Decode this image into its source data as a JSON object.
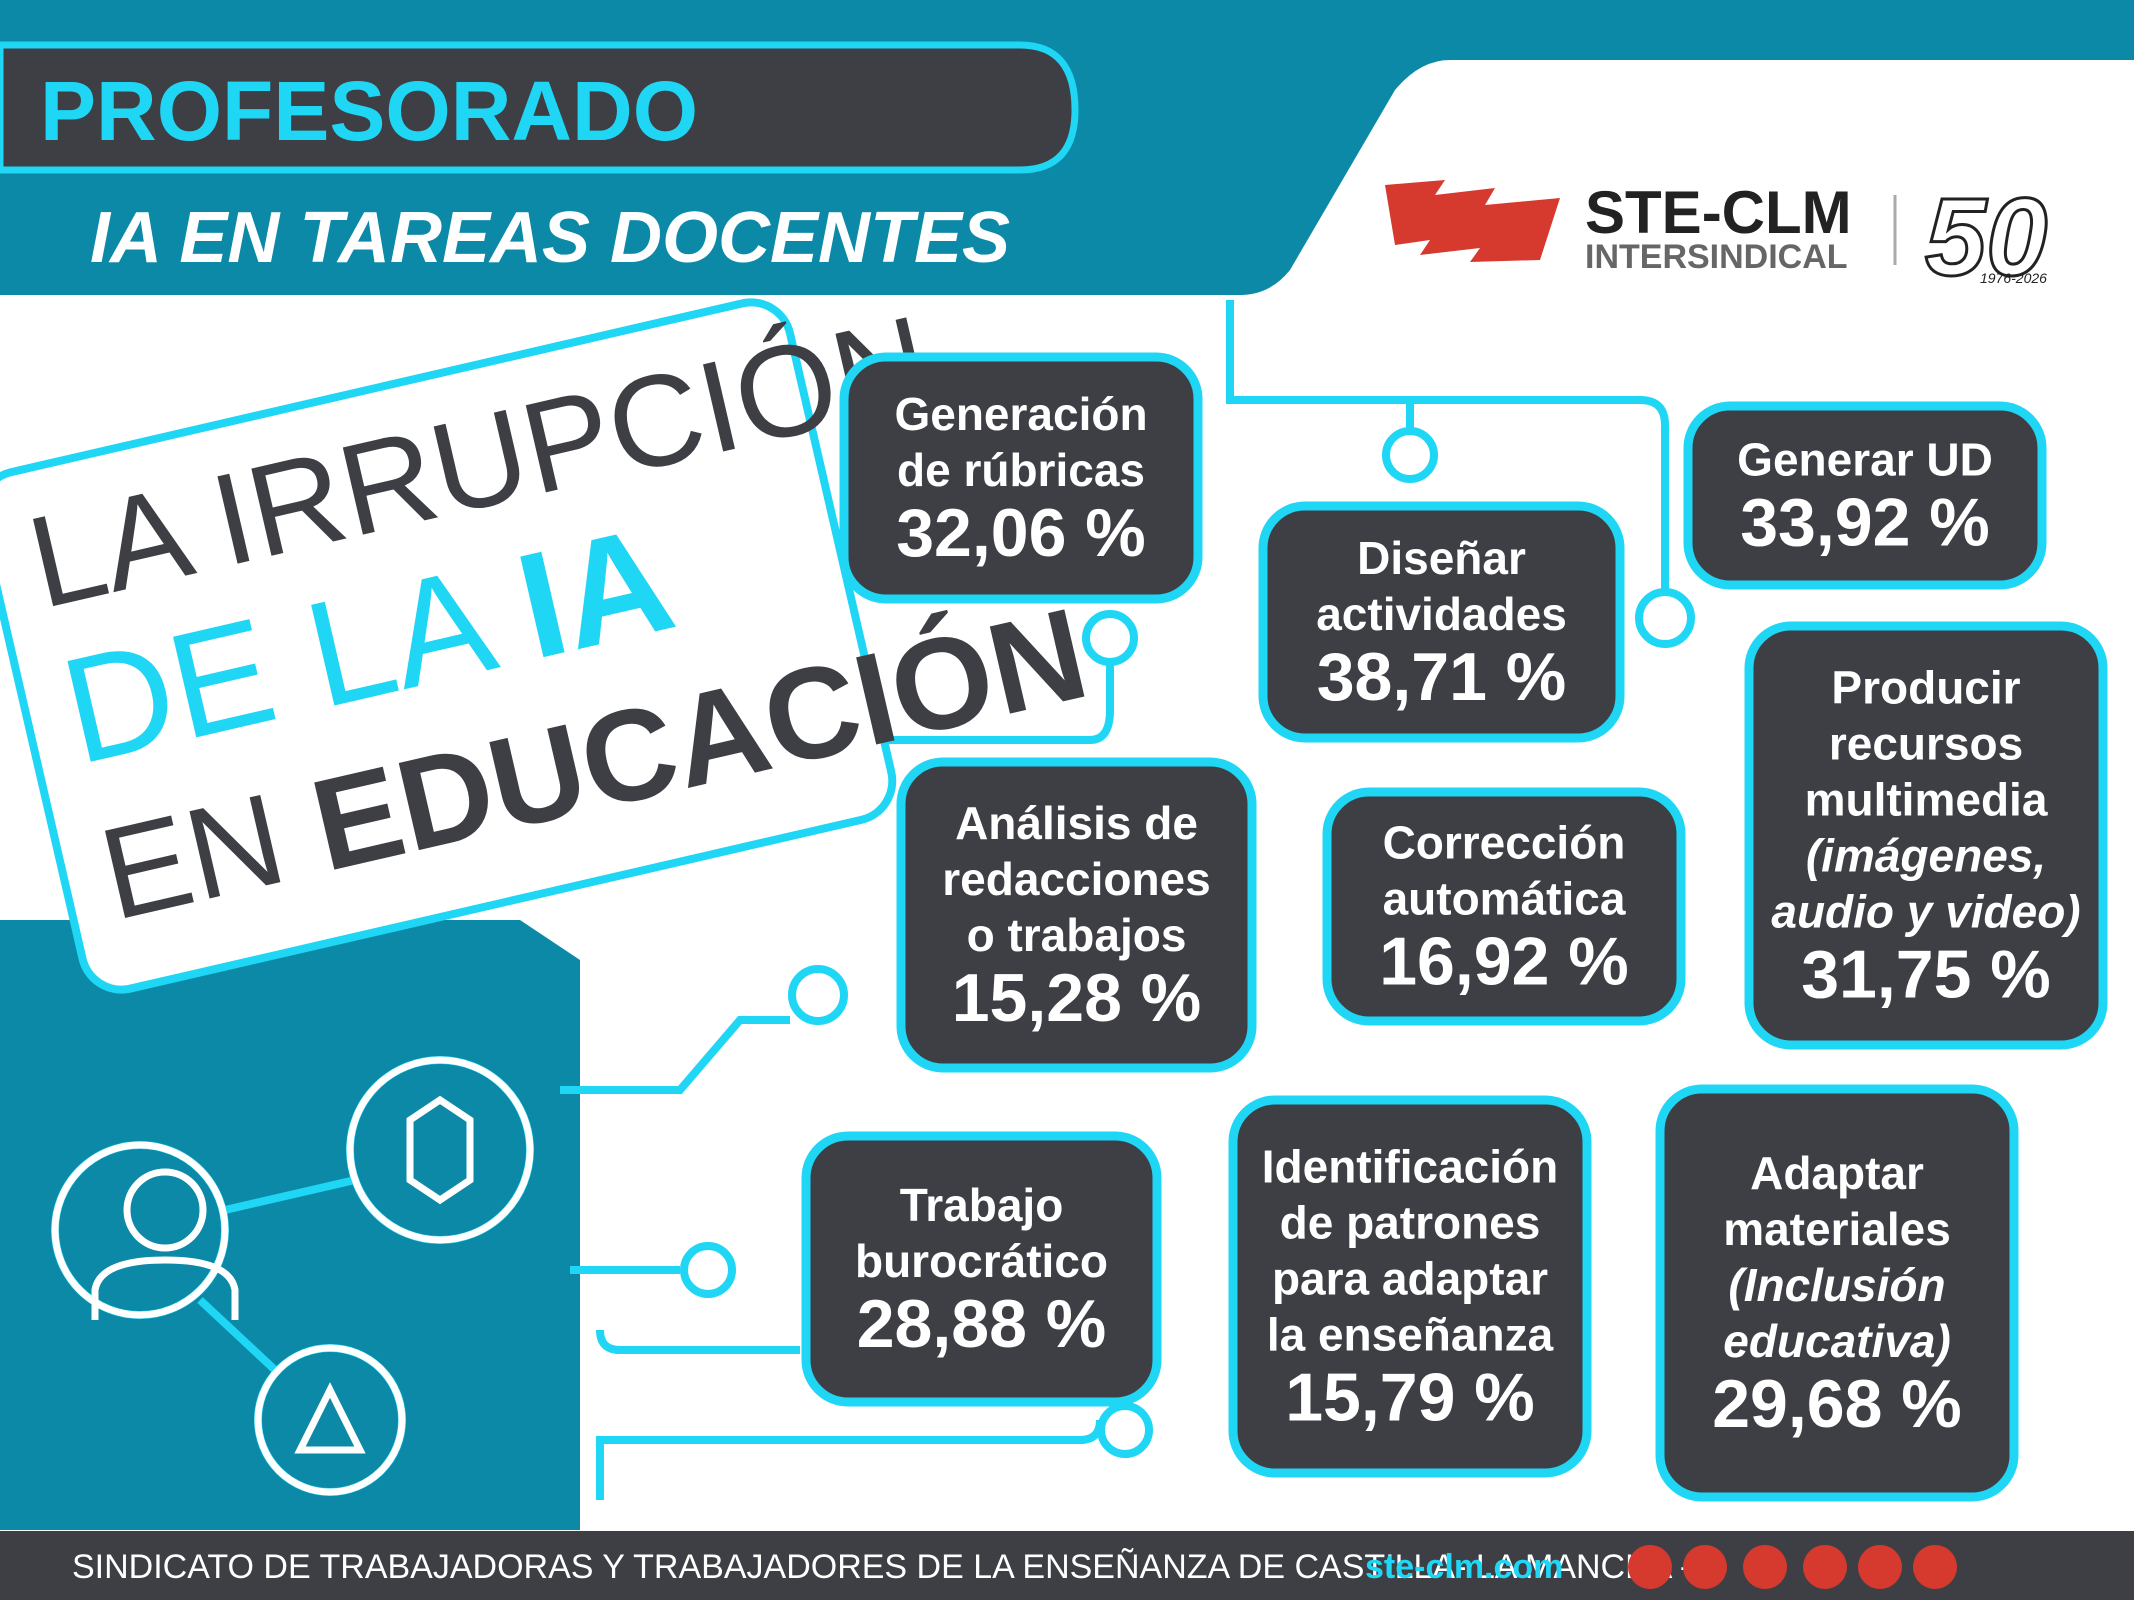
{
  "header": {
    "title": "PROFESORADO",
    "subtitle": "IA EN TAREAS DOCENTES"
  },
  "logo": {
    "name": "STE-CLM",
    "tagline": "INTERSINDICAL",
    "anniversary": "50",
    "years": "1976-2026"
  },
  "headline": {
    "line1": "LA IRRUPCIÓN",
    "line2a": "DE LA",
    "line2b": "IA",
    "line3a": "EN",
    "line3b": "EDUCACIÓN"
  },
  "items": [
    {
      "label": [
        "Generación",
        "de rúbricas"
      ],
      "value": "32,06 %"
    },
    {
      "label": [
        "Diseñar",
        "actividades"
      ],
      "value": "38,71 %"
    },
    {
      "label": [
        "Generar UD"
      ],
      "value": "33,92 %"
    },
    {
      "label": [
        "Producir",
        "recursos",
        "multimedia"
      ],
      "note": [
        "(imágenes,",
        "audio y video)"
      ],
      "value": "31,75 %"
    },
    {
      "label": [
        "Análisis de",
        "redacciones",
        "o trabajos"
      ],
      "value": "15,28 %"
    },
    {
      "label": [
        "Corrección",
        "automática"
      ],
      "value": "16,92 %"
    },
    {
      "label": [
        "Trabajo",
        "burocrático"
      ],
      "value": "28,88 %"
    },
    {
      "label": [
        "Identificación",
        "de patrones",
        "para adaptar",
        "la enseñanza"
      ],
      "value": "15,79 %"
    },
    {
      "label": [
        "Adaptar",
        "materiales"
      ],
      "note": [
        "(Inclusión",
        "educativa)"
      ],
      "value": "29,68 %"
    }
  ],
  "footer": {
    "text": "SINDICATO DE TRABAJADORAS Y TRABAJADORES DE LA ENSEÑANZA DE CASTILLA- LA MANCHA -",
    "link": "ste-clm.com"
  }
}
